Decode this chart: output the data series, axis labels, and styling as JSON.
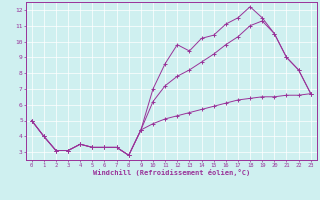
{
  "title": "",
  "xlabel": "Windchill (Refroidissement éolien,°C)",
  "ylabel": "",
  "xlim": [
    -0.5,
    23.5
  ],
  "ylim": [
    2.5,
    12.5
  ],
  "xticks": [
    0,
    1,
    2,
    3,
    4,
    5,
    6,
    7,
    8,
    9,
    10,
    11,
    12,
    13,
    14,
    15,
    16,
    17,
    18,
    19,
    20,
    21,
    22,
    23
  ],
  "yticks": [
    3,
    4,
    5,
    6,
    7,
    8,
    9,
    10,
    11,
    12
  ],
  "bg_color": "#cff0f0",
  "line_color": "#993399",
  "grid_color": "#ffffff",
  "line1_x": [
    0,
    1,
    2,
    3,
    4,
    5,
    6,
    7,
    8,
    9,
    10,
    11,
    12,
    13,
    14,
    15,
    16,
    17,
    18,
    19,
    20,
    21,
    22,
    23
  ],
  "line1_y": [
    5.0,
    4.0,
    3.1,
    3.1,
    3.5,
    3.3,
    3.3,
    3.3,
    2.8,
    4.4,
    7.0,
    8.6,
    9.8,
    9.4,
    10.2,
    10.4,
    11.1,
    11.5,
    12.2,
    11.5,
    10.5,
    9.0,
    8.2,
    6.7
  ],
  "line2_x": [
    0,
    1,
    2,
    3,
    4,
    5,
    6,
    7,
    8,
    9,
    10,
    11,
    12,
    13,
    14,
    15,
    16,
    17,
    18,
    19,
    20,
    21,
    22,
    23
  ],
  "line2_y": [
    5.0,
    4.0,
    3.1,
    3.1,
    3.5,
    3.3,
    3.3,
    3.3,
    2.8,
    4.4,
    6.2,
    7.2,
    7.8,
    8.2,
    8.7,
    9.2,
    9.8,
    10.3,
    11.0,
    11.3,
    10.5,
    9.0,
    8.2,
    6.7
  ],
  "line3_x": [
    0,
    1,
    2,
    3,
    4,
    5,
    6,
    7,
    8,
    9,
    10,
    11,
    12,
    13,
    14,
    15,
    16,
    17,
    18,
    19,
    20,
    21,
    22,
    23
  ],
  "line3_y": [
    5.0,
    4.0,
    3.1,
    3.1,
    3.5,
    3.3,
    3.3,
    3.3,
    2.8,
    4.4,
    4.8,
    5.1,
    5.3,
    5.5,
    5.7,
    5.9,
    6.1,
    6.3,
    6.4,
    6.5,
    6.5,
    6.6,
    6.6,
    6.7
  ]
}
